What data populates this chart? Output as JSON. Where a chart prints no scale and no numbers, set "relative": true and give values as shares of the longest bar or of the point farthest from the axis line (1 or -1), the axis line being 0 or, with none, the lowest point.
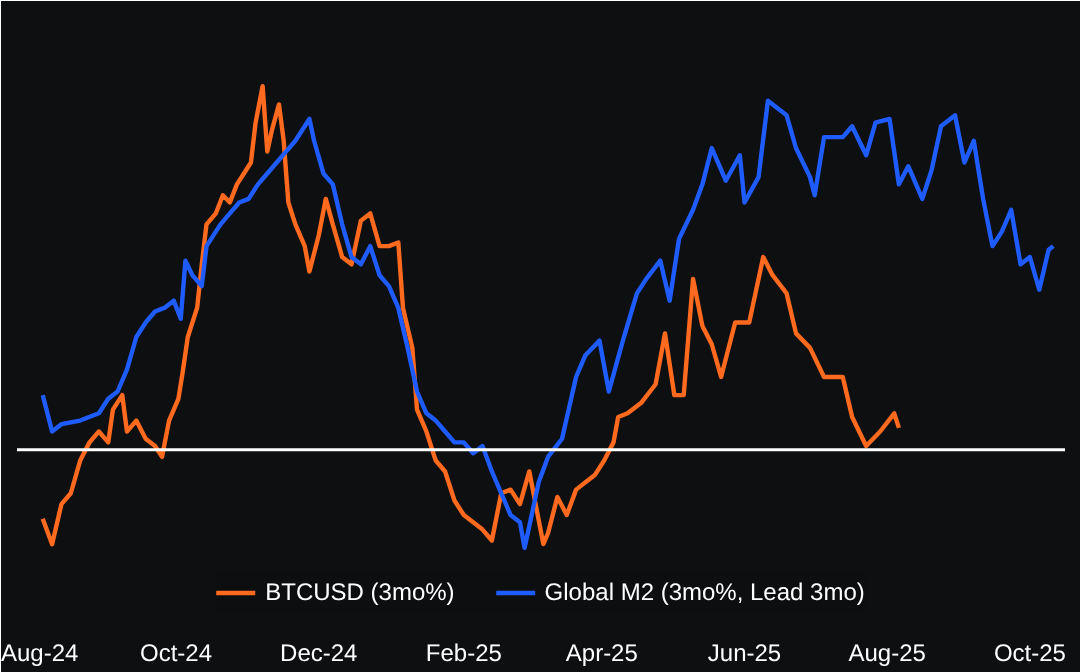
{
  "chart_data": {
    "type": "line",
    "relative": true,
    "xlim": [
      "2024-07-25",
      "2025-10-16"
    ],
    "xticks": [
      {
        "value": "2024-08-01",
        "label": "Aug-24"
      },
      {
        "value": "2024-10-01",
        "label": "Oct-24"
      },
      {
        "value": "2024-12-01",
        "label": "Dec-24"
      },
      {
        "value": "2025-02-01",
        "label": "Feb-25"
      },
      {
        "value": "2025-04-01",
        "label": "Apr-25"
      },
      {
        "value": "2025-06-01",
        "label": "Jun-25"
      },
      {
        "value": "2025-08-01",
        "label": "Aug-25"
      },
      {
        "value": "2025-10-01",
        "label": "Oct-25"
      }
    ],
    "legend": "bottom",
    "marker": "none",
    "line_style": "solid",
    "series": [
      {
        "name": "BTCUSD (3mo%)",
        "color": "#ff6a1f",
        "x": [
          "2024-08-05",
          "2024-08-09",
          "2024-08-13",
          "2024-08-17",
          "2024-08-21",
          "2024-08-25",
          "2024-08-29",
          "2024-09-02",
          "2024-09-04",
          "2024-09-08",
          "2024-09-10",
          "2024-09-14",
          "2024-09-18",
          "2024-09-22",
          "2024-09-25",
          "2024-09-28",
          "2024-10-02",
          "2024-10-04",
          "2024-10-06",
          "2024-10-10",
          "2024-10-12",
          "2024-10-14",
          "2024-10-18",
          "2024-10-21",
          "2024-10-24",
          "2024-10-27",
          "2024-10-30",
          "2024-11-02",
          "2024-11-04",
          "2024-11-07",
          "2024-11-09",
          "2024-11-11",
          "2024-11-14",
          "2024-11-16",
          "2024-11-18",
          "2024-11-21",
          "2024-11-25",
          "2024-11-27",
          "2024-12-01",
          "2024-12-04",
          "2024-12-07",
          "2024-12-11",
          "2024-12-15",
          "2024-12-19",
          "2024-12-23",
          "2024-12-27",
          "2024-12-31",
          "2025-01-04",
          "2025-01-06",
          "2025-01-10",
          "2025-01-12",
          "2025-01-16",
          "2025-01-20",
          "2025-01-24",
          "2025-01-28",
          "2025-02-01",
          "2025-02-05",
          "2025-02-09",
          "2025-02-13",
          "2025-02-17",
          "2025-02-21",
          "2025-02-25",
          "2025-03-01",
          "2025-03-07",
          "2025-03-09",
          "2025-03-13",
          "2025-03-17",
          "2025-03-21",
          "2025-03-25",
          "2025-03-29",
          "2025-04-02",
          "2025-04-06",
          "2025-04-08",
          "2025-04-12",
          "2025-04-18",
          "2025-04-24",
          "2025-04-28",
          "2025-05-02",
          "2025-05-06",
          "2025-05-10",
          "2025-05-14",
          "2025-05-18",
          "2025-05-22",
          "2025-05-28",
          "2025-06-03",
          "2025-06-07",
          "2025-06-09",
          "2025-06-13",
          "2025-06-19",
          "2025-06-23",
          "2025-06-29",
          "2025-07-05",
          "2025-07-13",
          "2025-07-17",
          "2025-07-23",
          "2025-07-29",
          "2025-08-04",
          "2025-08-06"
        ],
        "values": [
          -0.19,
          -0.26,
          -0.15,
          -0.12,
          -0.03,
          0.02,
          0.05,
          0.02,
          0.11,
          0.15,
          0.05,
          0.08,
          0.03,
          0.01,
          -0.02,
          0.08,
          0.14,
          0.22,
          0.31,
          0.39,
          0.51,
          0.62,
          0.65,
          0.7,
          0.68,
          0.73,
          0.76,
          0.79,
          0.9,
          1.0,
          0.82,
          0.88,
          0.95,
          0.85,
          0.68,
          0.62,
          0.56,
          0.49,
          0.59,
          0.69,
          0.62,
          0.53,
          0.51,
          0.63,
          0.65,
          0.56,
          0.56,
          0.57,
          0.39,
          0.28,
          0.11,
          0.05,
          -0.03,
          -0.06,
          -0.14,
          -0.18,
          -0.2,
          -0.22,
          -0.25,
          -0.12,
          -0.11,
          -0.15,
          -0.06,
          -0.26,
          -0.23,
          -0.13,
          -0.18,
          -0.11,
          -0.09,
          -0.07,
          -0.03,
          0.02,
          0.09,
          0.1,
          0.13,
          0.18,
          0.32,
          0.15,
          0.15,
          0.47,
          0.34,
          0.29,
          0.2,
          0.35,
          0.35,
          0.47,
          0.53,
          0.48,
          0.43,
          0.32,
          0.28,
          0.2,
          0.2,
          0.09,
          0.01,
          0.05,
          0.1,
          0.06
        ]
      },
      {
        "name": "Global M2 (3mo%, Lead 3mo)",
        "color": "#1f5cff",
        "x": [
          "2024-08-05",
          "2024-08-09",
          "2024-08-13",
          "2024-08-21",
          "2024-08-29",
          "2024-09-02",
          "2024-09-06",
          "2024-09-10",
          "2024-09-14",
          "2024-09-18",
          "2024-09-22",
          "2024-09-26",
          "2024-09-30",
          "2024-10-03",
          "2024-10-05",
          "2024-10-08",
          "2024-10-12",
          "2024-10-14",
          "2024-10-20",
          "2024-10-24",
          "2024-10-28",
          "2024-11-01",
          "2024-11-05",
          "2024-11-09",
          "2024-11-13",
          "2024-11-17",
          "2024-11-21",
          "2024-11-27",
          "2024-11-29",
          "2024-12-03",
          "2024-12-07",
          "2024-12-11",
          "2024-12-15",
          "2024-12-19",
          "2024-12-23",
          "2024-12-27",
          "2024-12-31",
          "2025-01-04",
          "2025-01-08",
          "2025-01-12",
          "2025-01-16",
          "2025-01-20",
          "2025-01-24",
          "2025-01-28",
          "2025-02-01",
          "2025-02-05",
          "2025-02-09",
          "2025-02-13",
          "2025-02-17",
          "2025-02-21",
          "2025-02-25",
          "2025-02-27",
          "2025-03-03",
          "2025-03-05",
          "2025-03-09",
          "2025-03-15",
          "2025-03-21",
          "2025-03-25",
          "2025-03-31",
          "2025-04-04",
          "2025-04-10",
          "2025-04-16",
          "2025-04-20",
          "2025-04-26",
          "2025-04-30",
          "2025-05-04",
          "2025-05-10",
          "2025-05-14",
          "2025-05-18",
          "2025-05-24",
          "2025-05-30",
          "2025-06-01",
          "2025-06-07",
          "2025-06-11",
          "2025-06-19",
          "2025-06-23",
          "2025-06-29",
          "2025-07-01",
          "2025-07-05",
          "2025-07-13",
          "2025-07-17",
          "2025-07-23",
          "2025-07-27",
          "2025-08-02",
          "2025-08-06",
          "2025-08-10",
          "2025-08-16",
          "2025-08-20",
          "2025-08-24",
          "2025-08-30",
          "2025-09-03",
          "2025-09-07",
          "2025-09-11",
          "2025-09-15",
          "2025-09-19",
          "2025-09-23",
          "2025-09-27",
          "2025-10-01",
          "2025-10-05",
          "2025-10-09",
          "2025-10-11"
        ],
        "values": [
          0.15,
          0.05,
          0.07,
          0.08,
          0.1,
          0.14,
          0.16,
          0.22,
          0.31,
          0.35,
          0.38,
          0.39,
          0.41,
          0.36,
          0.52,
          0.48,
          0.45,
          0.56,
          0.62,
          0.65,
          0.68,
          0.69,
          0.73,
          0.76,
          0.79,
          0.82,
          0.85,
          0.91,
          0.85,
          0.76,
          0.73,
          0.62,
          0.53,
          0.51,
          0.56,
          0.48,
          0.45,
          0.39,
          0.28,
          0.16,
          0.1,
          0.08,
          0.05,
          0.02,
          0.02,
          -0.01,
          0.01,
          -0.06,
          -0.12,
          -0.18,
          -0.2,
          -0.27,
          -0.15,
          -0.09,
          -0.02,
          0.03,
          0.2,
          0.26,
          0.3,
          0.16,
          0.3,
          0.43,
          0.47,
          0.52,
          0.41,
          0.58,
          0.66,
          0.73,
          0.83,
          0.74,
          0.81,
          0.68,
          0.75,
          0.96,
          0.92,
          0.83,
          0.75,
          0.7,
          0.86,
          0.86,
          0.89,
          0.81,
          0.9,
          0.91,
          0.73,
          0.78,
          0.69,
          0.77,
          0.89,
          0.92,
          0.79,
          0.85,
          0.69,
          0.56,
          0.6,
          0.66,
          0.51,
          0.53,
          0.44,
          0.55,
          0.56
        ]
      }
    ]
  }
}
